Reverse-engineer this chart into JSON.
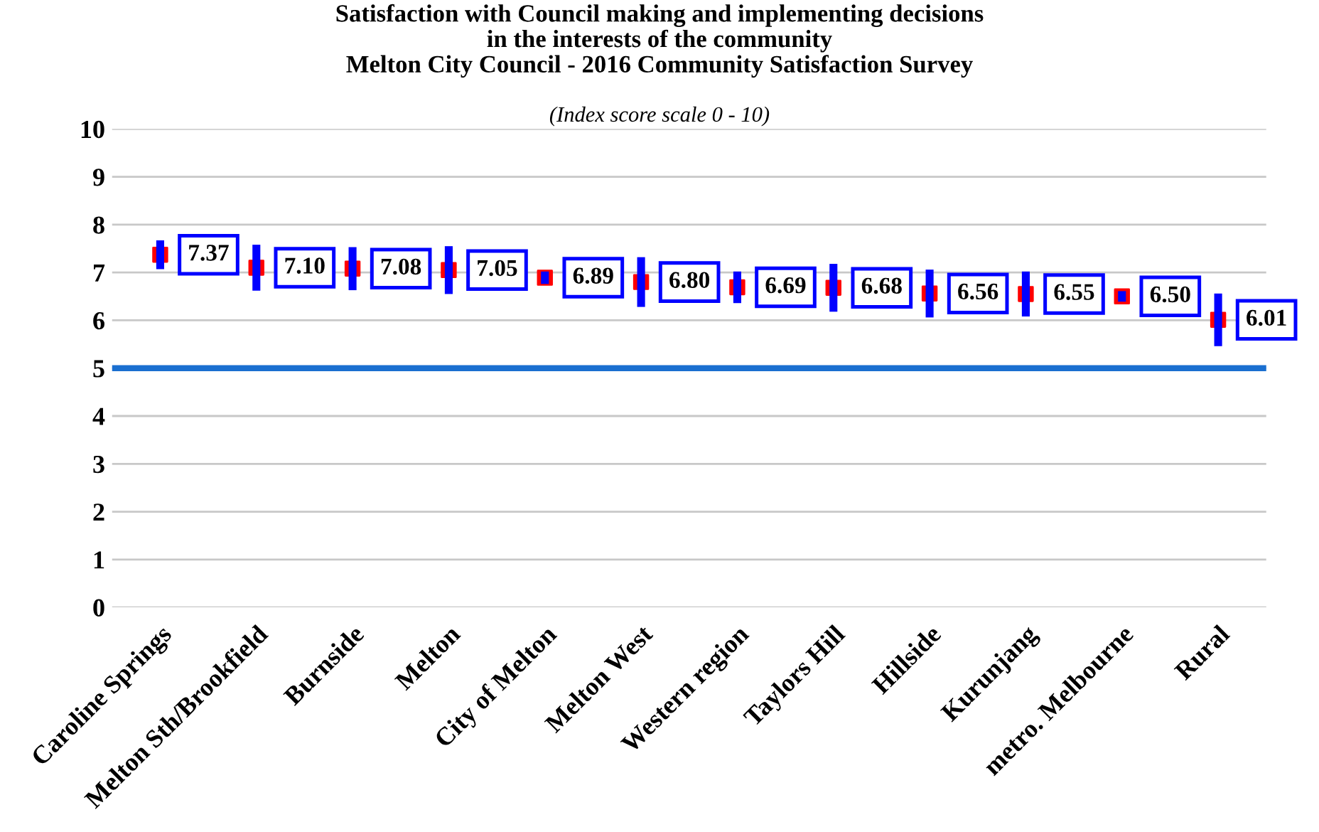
{
  "chart_data": {
    "type": "scatter",
    "title": "Satisfaction with Council making and implementing decisions\nin the interests of the community\nMelton City Council - 2016 Community Satisfaction Survey",
    "subtitle": "(Index score scale 0 - 10)",
    "categories": [
      "Caroline Springs",
      "Melton Sth/Brookfield",
      "Burnside",
      "Melton",
      "City of Melton",
      "Melton West",
      "Western region",
      "Taylors Hill",
      "Hillside",
      "Kurunjang",
      "metro. Melbourne",
      "Rural"
    ],
    "series": [
      {
        "color": "#0000ff",
        "colors": [
          "#ff0000",
          "#ff0000",
          "#ff0000",
          "#ff0000",
          "#ff0000",
          "#ff0000",
          "#ff0000",
          "#ff0000",
          "#ff0000",
          "#ff0000",
          "#ff0000",
          "#ff0000"
        ],
        "value_labels": [
          "7.37",
          "7.10",
          "7.08",
          "7.05",
          "6.89",
          "6.80",
          "6.69",
          "6.68",
          "6.56",
          "6.55",
          "6.50",
          "6.01"
        ],
        "values": [
          7.37,
          7.1,
          7.08,
          7.05,
          6.89,
          6.8,
          6.69,
          6.68,
          6.56,
          6.55,
          6.5,
          6.01
        ],
        "errors": [
          0.3,
          0.48,
          0.45,
          0.5,
          0.13,
          0.52,
          0.33,
          0.5,
          0.5,
          0.47,
          0.11,
          0.55
        ]
      }
    ],
    "marker": "square",
    "ylim": [
      0,
      10
    ],
    "yticks": [
      0,
      1,
      2,
      3,
      4,
      5,
      6,
      7,
      8,
      9,
      10
    ],
    "grid": "y",
    "ref_lines": [
      {
        "axis": "y",
        "value": 5,
        "color": "#1a6fd0"
      }
    ]
  }
}
